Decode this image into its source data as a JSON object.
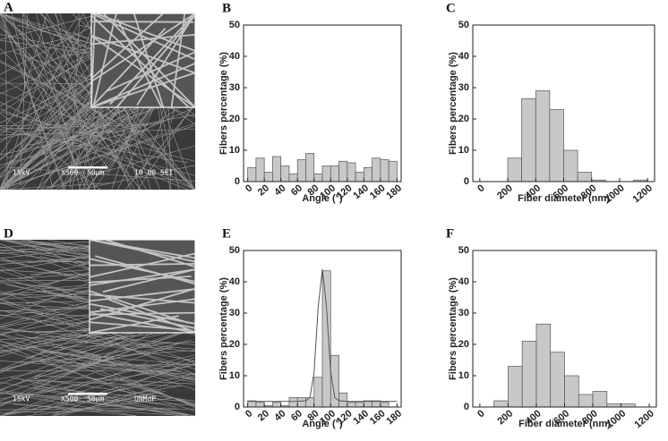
{
  "images": [
    {
      "label": "A",
      "captions": [
        "15kV",
        "X500",
        "50μm",
        "10 00 SEI"
      ]
    },
    {
      "label": "D",
      "captions": [
        "15kV",
        "X500",
        "50μm",
        "UNMdP"
      ]
    }
  ],
  "chart_data": [
    {
      "type": "histogram",
      "label": "B",
      "xlabel": "Angle (°)",
      "ylabel": "Fibers percentage (%)",
      "color": "#c8c8c8",
      "bins": [
        0,
        10,
        20,
        30,
        40,
        50,
        60,
        70,
        80,
        90,
        100,
        110,
        120,
        130,
        140,
        150,
        160,
        170,
        180
      ],
      "values": [
        4.5,
        7.5,
        3,
        8,
        5,
        2.5,
        7,
        9,
        2.5,
        5,
        5,
        6.5,
        6,
        3,
        4.5,
        7.5,
        7,
        6.5
      ],
      "xlim": [
        -5,
        185
      ],
      "xticks": [
        0,
        20,
        40,
        60,
        80,
        100,
        120,
        140,
        160,
        180
      ],
      "ylim": [
        0,
        50
      ],
      "yticks": [
        0,
        10,
        20,
        30,
        40,
        50
      ]
    },
    {
      "type": "histogram",
      "label": "C",
      "xlabel": "Fiber diameter (nm)",
      "ylabel": "Fibers percentage (%)",
      "color": "#c8c8c8",
      "bins": [
        100,
        200,
        300,
        400,
        500,
        600,
        700,
        800,
        900,
        1000,
        1100,
        1200
      ],
      "values": [
        0,
        7.5,
        26.5,
        29,
        23,
        10,
        3,
        0.5,
        0,
        0,
        0.5
      ],
      "xlim": [
        -50,
        1250
      ],
      "xticks": [
        0,
        200,
        400,
        600,
        800,
        1000,
        1200
      ],
      "ylim": [
        0,
        50
      ],
      "yticks": [
        0,
        10,
        20,
        30,
        40,
        50
      ]
    },
    {
      "type": "histogram",
      "label": "E",
      "xlabel": "Angle (°)",
      "ylabel": "Fibers percentage (%)",
      "color": "#c8c8c8",
      "bins": [
        0,
        10,
        20,
        30,
        40,
        50,
        60,
        70,
        80,
        90,
        100,
        110,
        120,
        130,
        140,
        150,
        160,
        170,
        180
      ],
      "values": [
        2,
        1.5,
        0.5,
        1.5,
        0.5,
        3,
        3,
        3,
        9.5,
        43.5,
        16.5,
        4.5,
        1.5,
        1.5,
        2,
        2,
        1.5,
        0
      ],
      "fit": {
        "x": [
          0,
          60,
          70,
          75,
          80,
          85,
          90,
          95,
          100,
          105,
          110,
          120,
          180
        ],
        "values": [
          1.8,
          1.8,
          2,
          3,
          11,
          32,
          44,
          32,
          11,
          3,
          2,
          1.8,
          1.8
        ]
      },
      "xlim": [
        -5,
        185
      ],
      "xticks": [
        0,
        20,
        40,
        60,
        80,
        100,
        120,
        140,
        160,
        180
      ],
      "ylim": [
        0,
        50
      ],
      "yticks": [
        0,
        10,
        20,
        30,
        40,
        50
      ]
    },
    {
      "type": "histogram",
      "label": "F",
      "xlabel": "Fiber diameter (nm)",
      "ylabel": "Fibers percentage (%)",
      "color": "#c8c8c8",
      "bins": [
        100,
        200,
        300,
        400,
        500,
        600,
        700,
        800,
        900,
        1000,
        1100
      ],
      "values": [
        2,
        13,
        21,
        26.5,
        17.5,
        10,
        4,
        5,
        1,
        1
      ],
      "xlim": [
        -50,
        1250
      ],
      "xticks": [
        0,
        200,
        400,
        600,
        800,
        1000,
        1200
      ],
      "ylim": [
        0,
        50
      ],
      "yticks": [
        0,
        10,
        20,
        30,
        40,
        50
      ]
    }
  ]
}
